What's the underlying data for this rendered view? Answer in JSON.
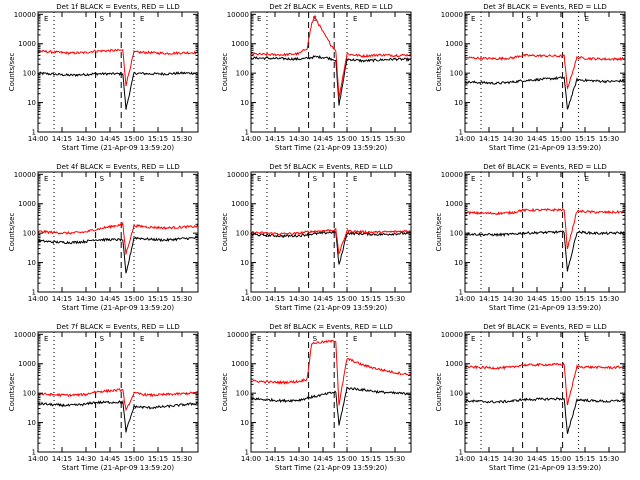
{
  "figure": {
    "start_time_label": "Start Time (21-Apr-09 13:59:20)",
    "y_axis_label": "Counts/sec",
    "x_tick_labels": [
      "14:00",
      "14:15",
      "14:30",
      "14:45",
      "15:00",
      "15:15",
      "15:30"
    ],
    "y_tick_labels": [
      "1",
      "10",
      "100",
      "1000",
      "10000"
    ],
    "region_markers": [
      "E",
      "S",
      "E"
    ],
    "colors": {
      "events": "#000000",
      "lld": "#ff0000"
    }
  },
  "chart_data": [
    {
      "type": "line",
      "title": "Det 1f BLACK = Events, RED = LLD",
      "xlabel": "Start Time (21-Apr-09 13:59:20)",
      "ylabel": "Counts/sec",
      "yscale": "log",
      "ylim": [
        1,
        12000
      ],
      "xlim_minutes_after_14_00": [
        0,
        100
      ],
      "event_markers": [
        [
          "dashed",
          36
        ],
        [
          "dashed",
          52
        ],
        [
          "dotted",
          10
        ],
        [
          "dotted",
          60
        ]
      ],
      "series": [
        {
          "name": "BLACK = Events",
          "color": "#000000",
          "x": [
            0,
            10,
            20,
            30,
            35,
            53,
            55,
            60,
            70,
            80,
            90,
            100
          ],
          "y": [
            100,
            92,
            85,
            90,
            95,
            95,
            6,
            100,
            95,
            95,
            100,
            100
          ]
        },
        {
          "name": "RED = LLD",
          "color": "#ff0000",
          "x": [
            0,
            10,
            20,
            30,
            35,
            53,
            55,
            60,
            70,
            80,
            90,
            100
          ],
          "y": [
            560,
            520,
            480,
            500,
            560,
            600,
            40,
            520,
            500,
            470,
            490,
            500
          ]
        }
      ]
    },
    {
      "type": "line",
      "title": "Det 2f BLACK = Events, RED = LLD",
      "xlabel": "Start Time (21-Apr-09 13:59:20)",
      "ylabel": "Counts/sec",
      "yscale": "log",
      "ylim": [
        1,
        12000
      ],
      "xlim_minutes_after_14_00": [
        0,
        100
      ],
      "event_markers": [
        [
          "dashed",
          36
        ],
        [
          "dashed",
          52
        ],
        [
          "dotted",
          10
        ],
        [
          "dotted",
          60
        ]
      ],
      "series": [
        {
          "name": "BLACK = Events",
          "color": "#000000",
          "x": [
            0,
            10,
            20,
            30,
            35,
            40,
            47,
            53,
            55,
            60,
            70,
            80,
            90,
            100
          ],
          "y": [
            330,
            320,
            310,
            300,
            320,
            360,
            340,
            280,
            8,
            300,
            260,
            280,
            300,
            290
          ]
        },
        {
          "name": "RED = LLD",
          "color": "#ff0000",
          "x": [
            0,
            10,
            20,
            30,
            35,
            38,
            40,
            45,
            50,
            53,
            55,
            60,
            70,
            80,
            90,
            100
          ],
          "y": [
            450,
            430,
            420,
            460,
            700,
            5000,
            8000,
            2500,
            900,
            600,
            15,
            450,
            380,
            420,
            400,
            420
          ]
        }
      ]
    },
    {
      "type": "line",
      "title": "Det 3f BLACK = Events, RED = LLD",
      "xlabel": "Start Time (21-Apr-09 13:59:20)",
      "ylabel": "Counts/sec",
      "yscale": "log",
      "ylim": [
        1,
        12000
      ],
      "xlim_minutes_after_14_00": [
        0,
        100
      ],
      "event_markers": [
        [
          "dashed",
          36
        ],
        [
          "dashed",
          61
        ],
        [
          "dotted",
          10
        ],
        [
          "dotted",
          71
        ]
      ],
      "series": [
        {
          "name": "BLACK = Events",
          "color": "#000000",
          "x": [
            0,
            10,
            20,
            30,
            35,
            62,
            64,
            70,
            80,
            90,
            100
          ],
          "y": [
            50,
            48,
            45,
            50,
            55,
            70,
            6,
            60,
            55,
            52,
            55
          ]
        },
        {
          "name": "RED = LLD",
          "color": "#ff0000",
          "x": [
            0,
            10,
            20,
            30,
            35,
            62,
            64,
            70,
            80,
            90,
            100
          ],
          "y": [
            340,
            320,
            310,
            330,
            400,
            380,
            30,
            340,
            310,
            300,
            310
          ]
        }
      ]
    },
    {
      "type": "line",
      "title": "Det 4f BLACK = Events, RED = LLD",
      "xlabel": "Start Time (21-Apr-09 13:59:20)",
      "ylabel": "Counts/sec",
      "yscale": "log",
      "ylim": [
        1,
        12000
      ],
      "xlim_minutes_after_14_00": [
        0,
        100
      ],
      "event_markers": [
        [
          "dashed",
          36
        ],
        [
          "dashed",
          52
        ],
        [
          "dotted",
          10
        ],
        [
          "dotted",
          60
        ]
      ],
      "series": [
        {
          "name": "BLACK = Events",
          "color": "#000000",
          "x": [
            0,
            10,
            20,
            30,
            35,
            53,
            55,
            60,
            70,
            80,
            90,
            100
          ],
          "y": [
            55,
            50,
            48,
            52,
            60,
            60,
            4,
            70,
            62,
            58,
            65,
            70
          ]
        },
        {
          "name": "RED = LLD",
          "color": "#ff0000",
          "x": [
            0,
            10,
            20,
            30,
            35,
            53,
            55,
            60,
            70,
            80,
            90,
            100
          ],
          "y": [
            115,
            105,
            100,
            110,
            130,
            200,
            20,
            180,
            160,
            150,
            160,
            170
          ]
        }
      ]
    },
    {
      "type": "line",
      "title": "Det 5f BLACK = Events, RED = LLD",
      "xlabel": "Start Time (21-Apr-09 13:59:20)",
      "ylabel": "Counts/sec",
      "yscale": "log",
      "ylim": [
        1,
        12000
      ],
      "xlim_minutes_after_14_00": [
        0,
        100
      ],
      "event_markers": [
        [
          "dashed",
          36
        ],
        [
          "dashed",
          52
        ],
        [
          "dotted",
          10
        ],
        [
          "dotted",
          60
        ]
      ],
      "series": [
        {
          "name": "BLACK = Events",
          "color": "#000000",
          "x": [
            0,
            10,
            20,
            30,
            35,
            53,
            55,
            60,
            70,
            80,
            90,
            100
          ],
          "y": [
            90,
            85,
            80,
            82,
            90,
            110,
            8,
            100,
            95,
            90,
            95,
            100
          ]
        },
        {
          "name": "RED = LLD",
          "color": "#ff0000",
          "x": [
            0,
            10,
            20,
            30,
            35,
            53,
            55,
            60,
            70,
            80,
            90,
            100
          ],
          "y": [
            105,
            100,
            95,
            98,
            110,
            130,
            20,
            120,
            110,
            108,
            112,
            120
          ]
        }
      ]
    },
    {
      "type": "line",
      "title": "Det 6f BLACK = Events, RED = LLD",
      "xlabel": "Start Time (21-Apr-09 13:59:20)",
      "ylabel": "Counts/sec",
      "yscale": "log",
      "ylim": [
        1,
        12000
      ],
      "xlim_minutes_after_14_00": [
        0,
        100
      ],
      "event_markers": [
        [
          "dashed",
          36
        ],
        [
          "dashed",
          61
        ],
        [
          "dotted",
          10
        ],
        [
          "dotted",
          71
        ]
      ],
      "series": [
        {
          "name": "BLACK = Events",
          "color": "#000000",
          "x": [
            0,
            10,
            20,
            30,
            35,
            62,
            64,
            70,
            80,
            90,
            100
          ],
          "y": [
            95,
            90,
            88,
            92,
            100,
            110,
            5,
            110,
            100,
            98,
            105
          ]
        },
        {
          "name": "RED = LLD",
          "color": "#ff0000",
          "x": [
            0,
            10,
            20,
            30,
            35,
            62,
            64,
            70,
            80,
            90,
            100
          ],
          "y": [
            500,
            480,
            470,
            500,
            600,
            620,
            30,
            560,
            520,
            510,
            530
          ]
        }
      ]
    },
    {
      "type": "line",
      "title": "Det 7f BLACK = Events, RED = LLD",
      "xlabel": "Start Time (21-Apr-09 13:59:20)",
      "ylabel": "Counts/sec",
      "yscale": "log",
      "ylim": [
        1,
        12000
      ],
      "xlim_minutes_after_14_00": [
        0,
        100
      ],
      "event_markers": [
        [
          "dashed",
          36
        ],
        [
          "dashed",
          52
        ],
        [
          "dotted",
          10
        ],
        [
          "dotted",
          60
        ]
      ],
      "series": [
        {
          "name": "BLACK = Events",
          "color": "#000000",
          "x": [
            0,
            10,
            20,
            30,
            35,
            53,
            55,
            60,
            70,
            80,
            90,
            100
          ],
          "y": [
            45,
            40,
            38,
            42,
            48,
            50,
            5,
            35,
            32,
            35,
            40,
            45
          ]
        },
        {
          "name": "RED = LLD",
          "color": "#ff0000",
          "x": [
            0,
            10,
            20,
            30,
            35,
            53,
            55,
            60,
            70,
            80,
            90,
            100
          ],
          "y": [
            95,
            88,
            85,
            90,
            110,
            130,
            25,
            100,
            85,
            90,
            95,
            105
          ]
        }
      ]
    },
    {
      "type": "line",
      "title": "Det 8f BLACK = Events, RED = LLD",
      "xlabel": "Start Time (21-Apr-09 13:59:20)",
      "ylabel": "Counts/sec",
      "yscale": "log",
      "ylim": [
        1,
        12000
      ],
      "xlim_minutes_after_14_00": [
        0,
        100
      ],
      "event_markers": [
        [
          "dashed",
          36
        ],
        [
          "dashed",
          52
        ],
        [
          "dotted",
          10
        ],
        [
          "dotted",
          60
        ]
      ],
      "series": [
        {
          "name": "BLACK = Events",
          "color": "#000000",
          "x": [
            0,
            10,
            20,
            30,
            35,
            53,
            55,
            60,
            70,
            80,
            90,
            100
          ],
          "y": [
            65,
            60,
            55,
            58,
            68,
            110,
            8,
            150,
            130,
            110,
            100,
            95
          ]
        },
        {
          "name": "RED = LLD",
          "color": "#ff0000",
          "x": [
            0,
            10,
            20,
            30,
            35,
            38,
            53,
            55,
            60,
            70,
            80,
            90,
            100
          ],
          "y": [
            260,
            240,
            230,
            250,
            300,
            5000,
            6000,
            40,
            1500,
            900,
            650,
            500,
            420
          ]
        }
      ]
    },
    {
      "type": "line",
      "title": "Det 9f BLACK = Events, RED = LLD",
      "xlabel": "Start Time (21-Apr-09 13:59:20)",
      "ylabel": "Counts/sec",
      "yscale": "log",
      "ylim": [
        1,
        12000
      ],
      "xlim_minutes_after_14_00": [
        0,
        100
      ],
      "event_markers": [
        [
          "dashed",
          36
        ],
        [
          "dashed",
          61
        ],
        [
          "dotted",
          10
        ],
        [
          "dotted",
          71
        ]
      ],
      "series": [
        {
          "name": "BLACK = Events",
          "color": "#000000",
          "x": [
            0,
            10,
            20,
            30,
            35,
            62,
            64,
            70,
            80,
            90,
            100
          ],
          "y": [
            55,
            52,
            50,
            54,
            60,
            65,
            4,
            60,
            55,
            52,
            58
          ]
        },
        {
          "name": "RED = LLD",
          "color": "#ff0000",
          "x": [
            0,
            10,
            20,
            30,
            35,
            62,
            64,
            70,
            80,
            90,
            100
          ],
          "y": [
            780,
            750,
            720,
            760,
            900,
            950,
            40,
            800,
            760,
            740,
            770
          ]
        }
      ]
    }
  ]
}
